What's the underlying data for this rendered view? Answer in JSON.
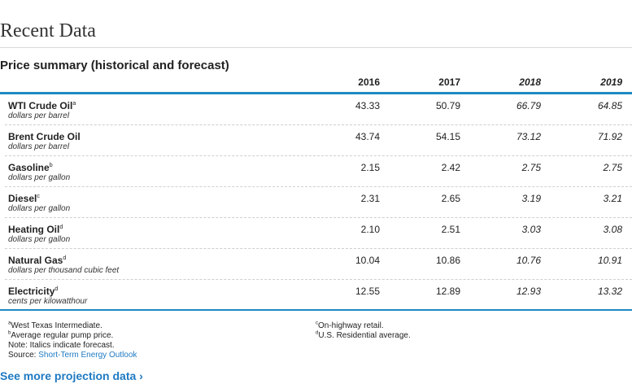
{
  "page": {
    "heading": "Recent Data",
    "table_title": "Price summary (historical and forecast)"
  },
  "table": {
    "years": [
      "2016",
      "2017",
      "2018",
      "2019"
    ],
    "forecast_years": [
      "2018",
      "2019"
    ],
    "rows": [
      {
        "name": "WTI Crude Oil",
        "sup": "a",
        "unit": "dollars per barrel",
        "values": [
          "43.33",
          "50.79",
          "66.79",
          "64.85"
        ]
      },
      {
        "name": "Brent Crude Oil",
        "sup": "",
        "unit": "dollars per barrel",
        "values": [
          "43.74",
          "54.15",
          "73.12",
          "71.92"
        ]
      },
      {
        "name": "Gasoline",
        "sup": "b",
        "unit": "dollars per gallon",
        "values": [
          "2.15",
          "2.42",
          "2.75",
          "2.75"
        ]
      },
      {
        "name": "Diesel",
        "sup": "c",
        "unit": "dollars per gallon",
        "values": [
          "2.31",
          "2.65",
          "3.19",
          "3.21"
        ]
      },
      {
        "name": "Heating Oil",
        "sup": "d",
        "unit": "dollars per gallon",
        "values": [
          "2.10",
          "2.51",
          "3.03",
          "3.08"
        ]
      },
      {
        "name": "Natural Gas",
        "sup": "d",
        "unit": "dollars per thousand cubic feet",
        "values": [
          "10.04",
          "10.86",
          "10.76",
          "10.91"
        ]
      },
      {
        "name": "Electricity",
        "sup": "d",
        "unit": "cents per kilowatthour",
        "values": [
          "12.55",
          "12.89",
          "12.93",
          "13.32"
        ]
      }
    ]
  },
  "footnotes": {
    "left": [
      {
        "sup": "a",
        "text": "West Texas Intermediate."
      },
      {
        "sup": "b",
        "text": "Average regular pump price."
      },
      {
        "sup": "",
        "text": "Note: Italics indicate forecast."
      }
    ],
    "source_label": "Source: ",
    "source_link": "Short-Term Energy Outlook",
    "right": [
      {
        "sup": "c",
        "text": "On-highway retail."
      },
      {
        "sup": "d",
        "text": "U.S. Residential average."
      }
    ]
  },
  "more_link": "See more projection data ›"
}
